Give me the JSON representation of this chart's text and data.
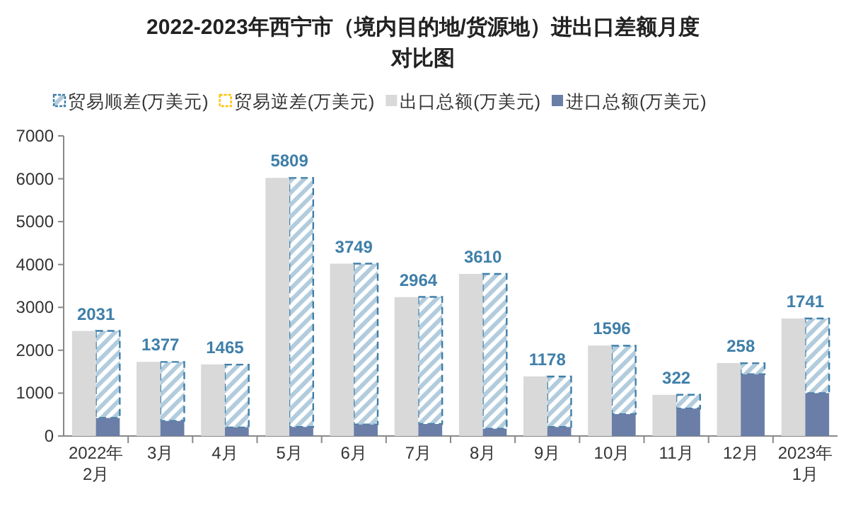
{
  "chart_data": {
    "type": "bar",
    "title": "2022-2023年西宁市（境内目的地/货源地）进出口差额月度对比图",
    "categories": [
      "2022年\n2月",
      "3月",
      "4月",
      "5月",
      "6月",
      "7月",
      "8月",
      "9月",
      "10月",
      "11月",
      "12月",
      "2023年\n1月"
    ],
    "series": [
      {
        "name": "贸易顺差(万美元)",
        "color": "#3f7fa9",
        "type": "bar",
        "base": [
          420,
          350,
          200,
          210,
          270,
          280,
          170,
          210,
          510,
          640,
          1440,
          1000
        ],
        "values": [
          2031,
          1377,
          1465,
          5809,
          3749,
          2964,
          3610,
          1178,
          1596,
          322,
          258,
          1741
        ],
        "data_labels": true
      },
      {
        "name": "贸易逆差(万美元)",
        "color": "#ffc000",
        "type": "bar",
        "values": [
          null,
          null,
          null,
          null,
          null,
          null,
          null,
          null,
          null,
          null,
          null,
          null
        ]
      },
      {
        "name": "出口总额(万美元)",
        "color": "#d9d9d9",
        "type": "bar",
        "values": [
          2450,
          1730,
          1670,
          6020,
          4020,
          3240,
          3780,
          1390,
          2110,
          960,
          1700,
          2740
        ]
      },
      {
        "name": "进口总额(万美元)",
        "color": "#6a7ea8",
        "type": "bar",
        "values": [
          420,
          350,
          200,
          210,
          270,
          280,
          170,
          210,
          510,
          640,
          1440,
          1000
        ]
      }
    ],
    "ylim": [
      0,
      7000
    ],
    "yticks": [
      0,
      1000,
      2000,
      3000,
      4000,
      5000,
      6000,
      7000
    ],
    "grid": false,
    "legend": "top"
  }
}
